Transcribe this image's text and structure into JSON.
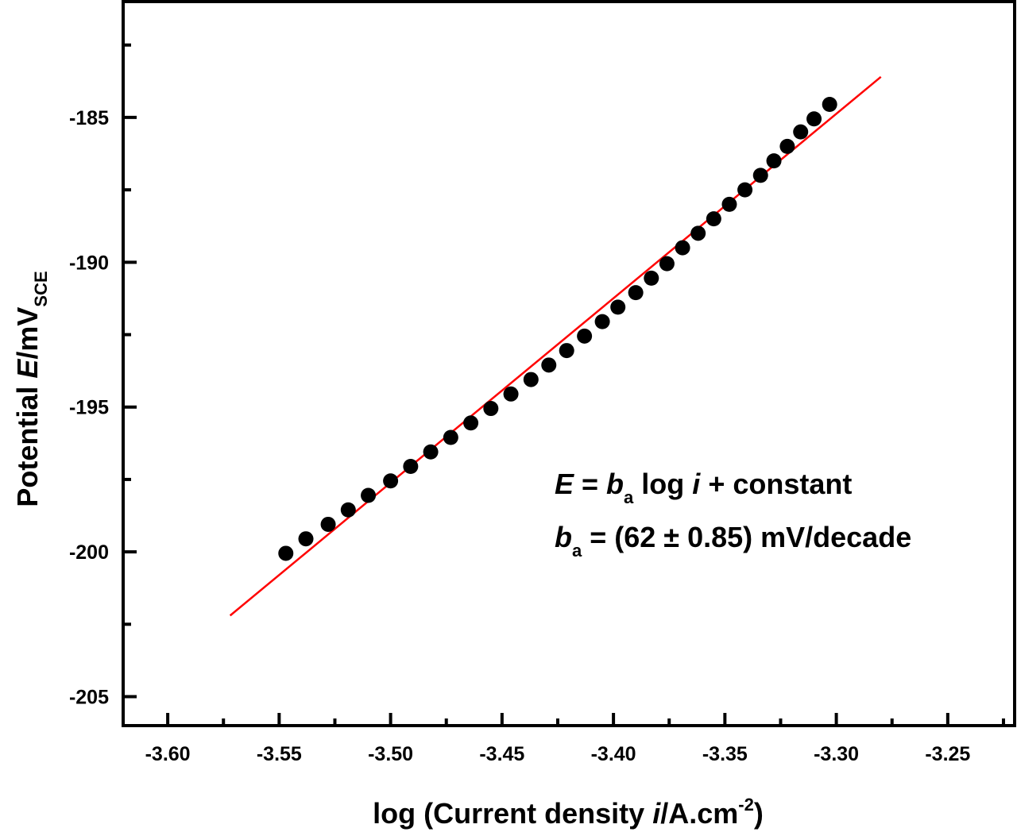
{
  "chart_data": {
    "type": "scatter",
    "xlabel": {
      "prefix": "log (Current density ",
      "var": "i",
      "unit": "/A.cm",
      "sup": "-2",
      "suffix": ")"
    },
    "ylabel": {
      "prefix": "Potential ",
      "var": "E",
      "unit": "/mV",
      "sub": "SCE"
    },
    "xlim": [
      -3.62,
      -3.22
    ],
    "ylim": [
      -206,
      -181
    ],
    "x_ticks": [
      -3.6,
      -3.55,
      -3.5,
      -3.45,
      -3.4,
      -3.35,
      -3.3,
      -3.25
    ],
    "x_tick_labels": [
      "-3.60",
      "-3.55",
      "-3.50",
      "-3.45",
      "-3.40",
      "-3.35",
      "-3.30",
      "-3.25"
    ],
    "x_minor_ticks": [
      -3.575,
      -3.525,
      -3.475,
      -3.425,
      -3.375,
      -3.325,
      -3.275,
      -3.225
    ],
    "y_ticks": [
      -185,
      -190,
      -195,
      -200,
      -205
    ],
    "y_tick_labels": [
      "-185",
      "-190",
      "-195",
      "-200",
      "-205"
    ],
    "y_minor_ticks": [
      -182.5,
      -187.5,
      -192.5,
      -197.5,
      -202.5
    ],
    "series": [
      {
        "kind": "points",
        "color": "#000000",
        "x": [
          -3.547,
          -3.538,
          -3.528,
          -3.519,
          -3.51,
          -3.5,
          -3.491,
          -3.482,
          -3.473,
          -3.464,
          -3.455,
          -3.446,
          -3.437,
          -3.429,
          -3.421,
          -3.413,
          -3.405,
          -3.398,
          -3.39,
          -3.383,
          -3.376,
          -3.369,
          -3.362,
          -3.355,
          -3.348,
          -3.341,
          -3.334,
          -3.328,
          -3.322,
          -3.316,
          -3.31,
          -3.303
        ],
        "y": [
          -200.05,
          -199.55,
          -199.05,
          -198.55,
          -198.05,
          -197.55,
          -197.05,
          -196.55,
          -196.05,
          -195.55,
          -195.05,
          -194.55,
          -194.05,
          -193.55,
          -193.05,
          -192.55,
          -192.05,
          -191.55,
          -191.05,
          -190.55,
          -190.05,
          -189.5,
          -189.0,
          -188.5,
          -188.0,
          -187.5,
          -187.0,
          -186.5,
          -186.0,
          -185.5,
          -185.05,
          -184.55
        ]
      },
      {
        "kind": "fit-line",
        "color": "#ff0000",
        "x": [
          -3.572,
          -3.28
        ],
        "y": [
          -202.2,
          -183.6
        ]
      }
    ],
    "annotations": [
      {
        "line": 1,
        "parts": [
          {
            "text": "E",
            "style": "italic"
          },
          {
            "text": " = ",
            "style": "normal"
          },
          {
            "text": "b",
            "style": "italic"
          },
          {
            "text": "a",
            "style": "sub"
          },
          {
            "text": " log ",
            "style": "normal"
          },
          {
            "text": "i",
            "style": "italic"
          },
          {
            "text": " + constant",
            "style": "normal"
          }
        ]
      },
      {
        "line": 2,
        "parts": [
          {
            "text": "b",
            "style": "italic"
          },
          {
            "text": "a",
            "style": "sub"
          },
          {
            "text": " = (62 ± 0.85) mV/decade",
            "style": "normal"
          }
        ]
      }
    ]
  }
}
